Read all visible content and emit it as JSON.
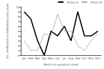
{
  "chart_data": {
    "type": "line",
    "categories": [
      "Jan",
      "Feb",
      "Mar",
      "Apr",
      "May",
      "Jun",
      "Jul",
      "Aug",
      "Sep",
      "Oct",
      "Nov",
      "Dec"
    ],
    "series": [
      {
        "name": "Prison A",
        "color": "#000000",
        "values": [
          9,
          7.5,
          3,
          0,
          5,
          4,
          6,
          3,
          9,
          4,
          4,
          5
        ]
      },
      {
        "name": "Prison B",
        "color": "#aaaaaa",
        "values": [
          3,
          1,
          1,
          4.5,
          4,
          8.5,
          5,
          5,
          2,
          1,
          3,
          4.5
        ]
      }
    ],
    "xlabel": "Month of symptom onset",
    "ylabel": "No. confirmed coccidioidomycosis cases",
    "ylim": [
      0,
      10
    ],
    "yticks": [
      0,
      1,
      2,
      3,
      4,
      5,
      6,
      7,
      8,
      9,
      10
    ],
    "grid": false,
    "legend": "upper right"
  }
}
